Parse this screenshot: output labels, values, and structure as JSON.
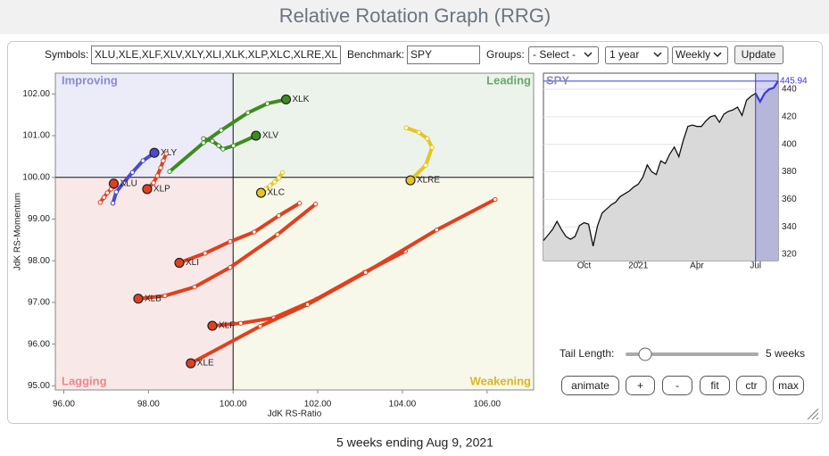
{
  "header": {
    "title": "Relative Rotation Graph (RRG)"
  },
  "controls": {
    "symbols_label": "Symbols:",
    "symbols": "XLU,XLE,XLF,XLV,XLY,XLI,XLK,XLP,XLC,XLRE,XL",
    "benchmark_label": "Benchmark:",
    "benchmark": "SPY",
    "groups_label": "Groups:",
    "groups": "- Select -",
    "period": "1 year",
    "frequency": "Weekly",
    "update": "Update"
  },
  "chart_data": [
    {
      "type": "rrg",
      "x_label": "JdK RS-Ratio",
      "y_label": "JdK RS-Momentum",
      "quadrant_center": [
        100,
        100
      ],
      "quadrants": [
        {
          "name": "Improving",
          "color": "#ececf8",
          "label_color": "#8a8ad8"
        },
        {
          "name": "Leading",
          "color": "#ebf3ea",
          "label_color": "#6aa86a"
        },
        {
          "name": "Lagging",
          "color": "#f8e8e8",
          "label_color": "#e68a8a"
        },
        {
          "name": "Weakening",
          "color": "#f7f7ea",
          "label_color": "#d8b820"
        }
      ],
      "xlim": [
        95.8,
        107.1
      ],
      "ylim": [
        94.9,
        102.5
      ],
      "xticks": [
        {
          "value": 96,
          "label": "96.00"
        },
        {
          "value": 98,
          "label": "98.00"
        },
        {
          "value": 100,
          "label": "100.00"
        },
        {
          "value": 102,
          "label": "102.00"
        },
        {
          "value": 104,
          "label": "104.00"
        },
        {
          "value": 106,
          "label": "106.00"
        }
      ],
      "yticks": [
        {
          "value": 95,
          "label": "95.00"
        },
        {
          "value": 96,
          "label": "96.00"
        },
        {
          "value": 97,
          "label": "97.00"
        },
        {
          "value": 98,
          "label": "98.00"
        },
        {
          "value": 99,
          "label": "99.00"
        },
        {
          "value": 100,
          "label": "100.00"
        },
        {
          "value": 101,
          "label": "101.00"
        },
        {
          "value": 102,
          "label": "102.00"
        }
      ],
      "series": [
        {
          "name": "XLK",
          "color": "#3c8c1e",
          "x": [
            98.5,
            99.3,
            99.72,
            100.35,
            100.81,
            101.25
          ],
          "values": [
            100.14,
            100.83,
            101.13,
            101.55,
            101.77,
            101.87
          ]
        },
        {
          "name": "XLV",
          "color": "#3c8c1e",
          "x": [
            99.3,
            99.51,
            99.66,
            99.76,
            100.01,
            100.54
          ],
          "values": [
            100.93,
            100.87,
            100.76,
            100.68,
            100.76,
            101.0
          ]
        },
        {
          "name": "XLY",
          "color": "#4a4ad0",
          "x": [
            97.16,
            97.24,
            97.41,
            97.62,
            97.87,
            98.14
          ],
          "values": [
            99.38,
            99.65,
            99.87,
            100.12,
            100.4,
            100.59
          ]
        },
        {
          "name": "XLP",
          "color": "#e0401e",
          "x": [
            98.42,
            98.35,
            98.29,
            98.21,
            98.12,
            97.97
          ],
          "values": [
            100.57,
            100.4,
            100.23,
            100.04,
            99.87,
            99.72
          ]
        },
        {
          "name": "XLU",
          "color": "#e0401e",
          "x": [
            96.86,
            96.95,
            97.03,
            97.12,
            97.2,
            97.18
          ],
          "values": [
            99.4,
            99.52,
            99.63,
            99.72,
            99.78,
            99.85
          ]
        },
        {
          "name": "XLC",
          "color": "#e8c420",
          "x": [
            101.17,
            101.08,
            100.98,
            100.87,
            100.77,
            100.66
          ],
          "values": [
            100.12,
            99.99,
            99.89,
            99.8,
            99.72,
            99.63
          ]
        },
        {
          "name": "XLRE",
          "color": "#e8c420",
          "x": [
            104.09,
            104.39,
            104.59,
            104.7,
            104.55,
            104.19
          ],
          "values": [
            101.19,
            101.08,
            100.93,
            100.72,
            100.29,
            99.93
          ]
        },
        {
          "name": "XLI",
          "color": "#e0401e",
          "x": [
            101.57,
            101.08,
            100.5,
            99.93,
            99.34,
            98.73
          ],
          "values": [
            99.38,
            99.08,
            98.69,
            98.46,
            98.18,
            97.95
          ]
        },
        {
          "name": "XLB",
          "color": "#e0401e",
          "x": [
            101.95,
            101.05,
            99.93,
            99.09,
            98.39,
            97.76
          ],
          "values": [
            99.36,
            98.63,
            97.84,
            97.37,
            97.16,
            97.09
          ]
        },
        {
          "name": "XLF",
          "color": "#e0401e",
          "x": [
            104.07,
            103.1,
            101.97,
            100.96,
            100.18,
            99.51
          ],
          "values": [
            98.23,
            97.72,
            97.08,
            96.63,
            96.5,
            96.44
          ]
        },
        {
          "name": "XLE",
          "color": "#e0401e",
          "x": [
            106.19,
            104.81,
            103.13,
            101.76,
            100.64,
            99.0
          ],
          "values": [
            99.47,
            98.74,
            97.72,
            96.95,
            96.43,
            95.54
          ]
        }
      ]
    },
    {
      "type": "line",
      "title": "SPY",
      "color": "#111111",
      "highlight_color": "#3a3ad8",
      "categories": [
        null,
        null,
        null,
        null,
        null,
        null,
        null,
        null,
        null,
        "Oct",
        null,
        null,
        null,
        null,
        null,
        null,
        null,
        null,
        null,
        null,
        null,
        "2021",
        null,
        null,
        null,
        null,
        null,
        null,
        null,
        null,
        null,
        null,
        null,
        null,
        "Apr",
        null,
        null,
        null,
        null,
        null,
        null,
        null,
        null,
        null,
        null,
        null,
        null,
        "Jul",
        null,
        null,
        null,
        null,
        null
      ],
      "values": [
        330,
        334,
        338,
        344,
        338,
        333,
        331,
        333,
        341,
        343,
        342,
        326,
        341,
        350,
        353,
        356,
        358,
        362,
        364,
        366,
        369,
        371,
        376,
        385,
        380,
        378,
        388,
        386,
        393,
        398,
        391,
        403,
        413,
        414,
        413,
        413,
        417,
        420,
        421,
        416,
        422,
        424,
        425,
        427,
        421,
        432,
        435,
        437,
        431,
        437,
        440,
        441,
        445.94
      ],
      "ylim": [
        315.5,
        451.7
      ],
      "yticks": [
        320,
        340,
        360,
        380,
        400,
        420,
        440
      ],
      "grid": true
    }
  ],
  "tail": {
    "label": "Tail Length:",
    "length": {
      "value": 5,
      "label": "5 weeks"
    }
  },
  "buttons": [
    "animate",
    "+",
    "-",
    "fit",
    "ctr",
    "max"
  ],
  "footer": "5 weeks ending Aug 9, 2021"
}
